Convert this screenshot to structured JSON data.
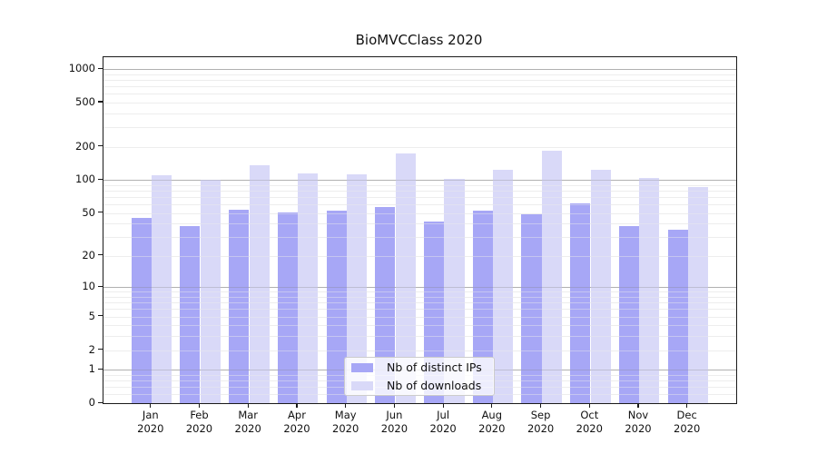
{
  "chart_data": {
    "type": "bar",
    "title": "BioMVCClass 2020",
    "year_label": "2020",
    "categories": [
      "Jan",
      "Feb",
      "Mar",
      "Apr",
      "May",
      "Jun",
      "Jul",
      "Aug",
      "Sep",
      "Oct",
      "Nov",
      "Dec"
    ],
    "series": [
      {
        "name": "Nb of distinct IPs",
        "color": "#a7a7f6",
        "values": [
          45,
          38,
          54,
          51,
          53,
          57,
          42,
          53,
          49,
          61,
          38,
          35
        ]
      },
      {
        "name": "Nb of downloads",
        "color": "#d9d9f8",
        "values": [
          110,
          101,
          137,
          114,
          112,
          175,
          103,
          123,
          183,
          123,
          105,
          87
        ]
      }
    ],
    "yscale": "log1p",
    "yticks": [
      1000,
      500,
      200,
      100,
      50,
      20,
      10,
      5,
      2,
      1,
      0
    ],
    "ylim": [
      0,
      1250
    ],
    "xlabel": "",
    "ylabel": "",
    "grid": "on",
    "legend_position": "lower center"
  }
}
